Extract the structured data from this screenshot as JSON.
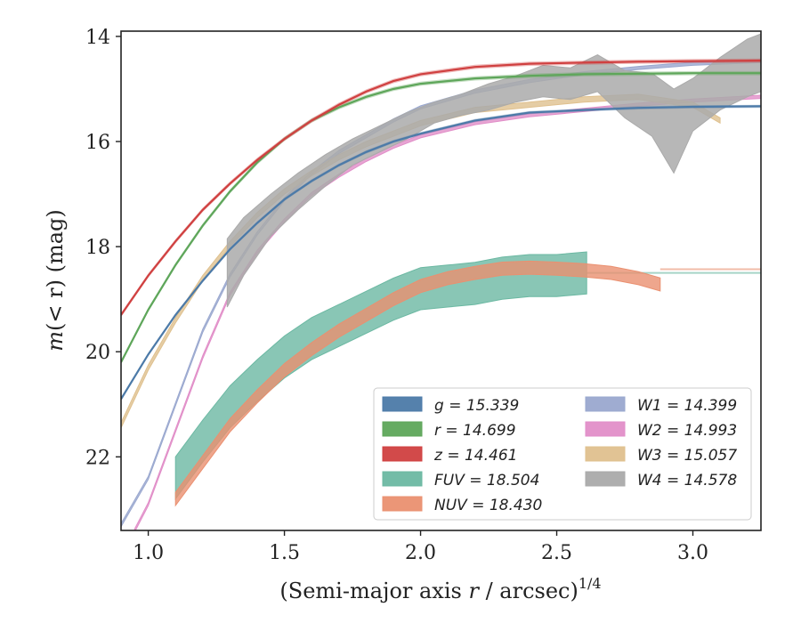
{
  "chart_data": {
    "type": "line",
    "title": "",
    "xlabel": "(Semi-major axis r / arcsec)",
    "xlabel_italic_part": "r",
    "xlabel_before": "(Semi-major axis ",
    "xlabel_after": " / arcsec)",
    "xlabel_sup": "1/4",
    "ylabel_pre": "m",
    "ylabel_mid": "(< r) (mag)",
    "ylabel_display": "m(< r) (mag)",
    "xlim": [
      0.9,
      3.25
    ],
    "ylim": [
      23.4,
      13.9
    ],
    "y_inverted": true,
    "xticks": [
      1.0,
      1.5,
      2.0,
      2.5,
      3.0
    ],
    "xtick_labels": [
      "1.0",
      "1.5",
      "2.0",
      "2.5",
      "3.0"
    ],
    "yticks": [
      14,
      16,
      18,
      20,
      22
    ],
    "ytick_labels": [
      "14",
      "16",
      "18",
      "20",
      "22"
    ],
    "grid": false,
    "legend_placement": "lower-right",
    "legend": [
      {
        "label": "g = 15.339",
        "color": "#4c7aa8"
      },
      {
        "label": "r = 14.699",
        "color": "#5ea65a"
      },
      {
        "label": "z = 14.461",
        "color": "#d04040"
      },
      {
        "label": "FUV = 18.504",
        "color": "#6bb8a2"
      },
      {
        "label": "NUV = 18.430",
        "color": "#ea9070"
      },
      {
        "label": "W1 = 14.399",
        "color": "#9aa8cf"
      },
      {
        "label": "W2 = 14.993",
        "color": "#e18ec8"
      },
      {
        "label": "W3 = 15.057",
        "color": "#dfc08e"
      },
      {
        "label": "W4 = 14.578",
        "color": "#aaaaaa"
      }
    ],
    "series": [
      {
        "name": "g",
        "color": "#4c7aa8",
        "style": "model+band",
        "x": [
          0.9,
          1.0,
          1.1,
          1.2,
          1.3,
          1.4,
          1.5,
          1.6,
          1.7,
          1.8,
          1.9,
          2.0,
          2.2,
          2.4,
          2.6,
          2.8,
          3.0,
          3.25
        ],
        "y": [
          20.9,
          20.05,
          19.3,
          18.65,
          18.05,
          17.55,
          17.1,
          16.75,
          16.45,
          16.2,
          16.0,
          15.85,
          15.6,
          15.45,
          15.4,
          15.36,
          15.34,
          15.33
        ],
        "band_width": 0.06
      },
      {
        "name": "r",
        "color": "#5ea65a",
        "style": "model+band",
        "x": [
          0.9,
          1.0,
          1.1,
          1.2,
          1.3,
          1.4,
          1.5,
          1.6,
          1.7,
          1.8,
          1.9,
          2.0,
          2.2,
          2.4,
          2.6,
          2.8,
          3.0,
          3.25
        ],
        "y": [
          20.2,
          19.2,
          18.35,
          17.6,
          16.95,
          16.4,
          15.95,
          15.6,
          15.35,
          15.15,
          15.0,
          14.9,
          14.8,
          14.75,
          14.72,
          14.71,
          14.7,
          14.7
        ],
        "band_width": 0.08
      },
      {
        "name": "z",
        "color": "#d04040",
        "style": "model+band",
        "x": [
          0.9,
          1.0,
          1.1,
          1.2,
          1.3,
          1.4,
          1.5,
          1.6,
          1.7,
          1.8,
          1.9,
          2.0,
          2.2,
          2.4,
          2.6,
          2.8,
          3.0,
          3.25
        ],
        "y": [
          19.3,
          18.55,
          17.9,
          17.3,
          16.8,
          16.35,
          15.95,
          15.6,
          15.3,
          15.05,
          14.85,
          14.72,
          14.58,
          14.52,
          14.5,
          14.48,
          14.47,
          14.46
        ],
        "band_width": 0.08
      },
      {
        "name": "FUV",
        "color": "#6bb8a2",
        "style": "band",
        "x": [
          1.1,
          1.2,
          1.3,
          1.4,
          1.5,
          1.6,
          1.7,
          1.8,
          1.9,
          2.0,
          2.1,
          2.2,
          2.3,
          2.4,
          2.5,
          2.61
        ],
        "y": [
          22.4,
          21.7,
          21.05,
          20.55,
          20.1,
          19.75,
          19.5,
          19.25,
          19.0,
          18.8,
          18.75,
          18.7,
          18.6,
          18.55,
          18.55,
          18.5
        ],
        "band_width": 0.8,
        "ext_x": [
          2.61,
          3.25
        ],
        "ext_y": [
          18.5,
          18.5
        ]
      },
      {
        "name": "NUV",
        "color": "#ea9070",
        "style": "band",
        "x": [
          1.1,
          1.2,
          1.3,
          1.4,
          1.5,
          1.6,
          1.7,
          1.8,
          1.9,
          2.0,
          2.1,
          2.2,
          2.3,
          2.4,
          2.5,
          2.6,
          2.7,
          2.8,
          2.88
        ],
        "y": [
          22.8,
          22.1,
          21.4,
          20.85,
          20.35,
          19.95,
          19.6,
          19.3,
          19.0,
          18.75,
          18.6,
          18.5,
          18.42,
          18.4,
          18.42,
          18.45,
          18.5,
          18.6,
          18.72
        ],
        "band_width": 0.25,
        "ext_x": [
          2.88,
          3.25
        ],
        "ext_y": [
          18.43,
          18.43
        ]
      },
      {
        "name": "W1",
        "color": "#9aa8cf",
        "style": "band",
        "x": [
          0.9,
          1.0,
          1.1,
          1.2,
          1.3,
          1.4,
          1.5,
          1.6,
          1.7,
          1.8,
          1.9,
          2.0,
          2.2,
          2.4,
          2.6,
          2.8,
          3.0,
          3.25
        ],
        "y": [
          23.3,
          22.4,
          21.0,
          19.6,
          18.55,
          17.75,
          17.1,
          16.6,
          16.2,
          15.9,
          15.6,
          15.35,
          15.05,
          14.85,
          14.7,
          14.6,
          14.52,
          14.47
        ],
        "band_width": 0.06
      },
      {
        "name": "W2",
        "color": "#e18ec8",
        "style": "band",
        "x": [
          0.95,
          1.0,
          1.1,
          1.2,
          1.3,
          1.4,
          1.5,
          1.6,
          1.7,
          1.8,
          1.9,
          2.0,
          2.2,
          2.4,
          2.6,
          2.8,
          3.0,
          3.25
        ],
        "y": [
          23.4,
          22.9,
          21.5,
          20.1,
          18.9,
          18.1,
          17.5,
          17.0,
          16.65,
          16.35,
          16.1,
          15.9,
          15.65,
          15.5,
          15.4,
          15.3,
          15.22,
          15.15
        ],
        "band_width": 0.06
      },
      {
        "name": "W3",
        "color": "#dfc08e",
        "style": "band",
        "x": [
          0.9,
          1.0,
          1.1,
          1.2,
          1.3,
          1.4,
          1.5,
          1.6,
          1.7,
          1.8,
          1.9,
          2.0,
          2.2,
          2.4,
          2.6,
          2.8,
          3.0,
          3.1
        ],
        "y": [
          21.4,
          20.3,
          19.4,
          18.6,
          17.95,
          17.4,
          16.95,
          16.6,
          16.3,
          16.05,
          15.85,
          15.65,
          15.4,
          15.3,
          15.2,
          15.15,
          15.3,
          15.6
        ],
        "band_width": 0.1
      },
      {
        "name": "W4",
        "color": "#aaaaaa",
        "style": "band",
        "x": [
          1.29,
          1.35,
          1.45,
          1.55,
          1.65,
          1.75,
          1.85,
          1.95,
          2.05,
          2.15,
          2.25,
          2.35,
          2.45,
          2.55,
          2.65,
          2.75,
          2.85,
          2.93,
          3.0,
          3.1,
          3.2,
          3.25
        ],
        "y": [
          18.5,
          18.0,
          17.4,
          16.95,
          16.55,
          16.2,
          15.95,
          15.7,
          15.45,
          15.3,
          15.15,
          15.0,
          14.85,
          14.9,
          14.7,
          15.1,
          15.3,
          15.8,
          15.3,
          14.9,
          14.6,
          14.5
        ],
        "band_width": [
          1.3,
          1.1,
          0.8,
          0.7,
          0.6,
          0.5,
          0.5,
          0.5,
          0.4,
          0.4,
          0.5,
          0.5,
          0.6,
          0.6,
          0.7,
          0.9,
          1.2,
          1.6,
          1.0,
          1.0,
          1.1,
          1.1
        ]
      }
    ]
  }
}
